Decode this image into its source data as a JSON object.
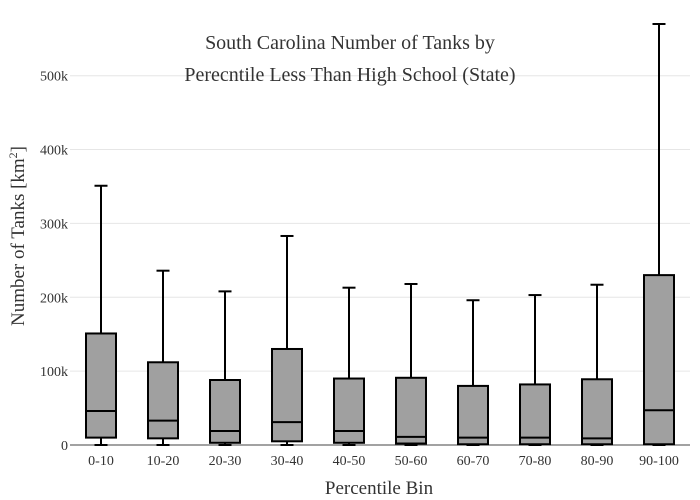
{
  "chart_data": {
    "type": "box",
    "title_line1": "South Carolina Number of Tanks by",
    "title_line2": "Perecntile Less Than High School (State)",
    "xlabel": "Percentile Bin",
    "ylabel_main": "Number of Tanks  [km",
    "ylabel_sup": "2",
    "ylabel_close": "]",
    "ylim": [
      0,
      570000
    ],
    "yticks": [
      0,
      100000,
      200000,
      300000,
      400000,
      500000
    ],
    "ytick_labels": [
      "0",
      "100k",
      "200k",
      "300k",
      "400k",
      "500k"
    ],
    "grid": true,
    "box_color": "#a0a0a0",
    "line_color": "#000000",
    "categories": [
      "0-10",
      "10-20",
      "20-30",
      "30-40",
      "40-50",
      "50-60",
      "60-70",
      "70-80",
      "80-90",
      "90-100"
    ],
    "boxes": [
      {
        "min": 0,
        "q1": 10000,
        "median": 46000,
        "q3": 151000,
        "max": 351000
      },
      {
        "min": 0,
        "q1": 9000,
        "median": 33000,
        "q3": 112000,
        "max": 236000
      },
      {
        "min": 0,
        "q1": 3000,
        "median": 19000,
        "q3": 88000,
        "max": 208000
      },
      {
        "min": 0,
        "q1": 5000,
        "median": 31000,
        "q3": 130000,
        "max": 283000
      },
      {
        "min": 0,
        "q1": 3000,
        "median": 19000,
        "q3": 90000,
        "max": 213000
      },
      {
        "min": 0,
        "q1": 2000,
        "median": 11000,
        "q3": 91000,
        "max": 218000
      },
      {
        "min": 0,
        "q1": 1000,
        "median": 10000,
        "q3": 80000,
        "max": 196000
      },
      {
        "min": 0,
        "q1": 1000,
        "median": 10000,
        "q3": 82000,
        "max": 203000
      },
      {
        "min": 0,
        "q1": 1000,
        "median": 9000,
        "q3": 89000,
        "max": 217000
      },
      {
        "min": 0,
        "q1": 1000,
        "median": 47000,
        "q3": 230000,
        "max": 570000
      }
    ]
  }
}
